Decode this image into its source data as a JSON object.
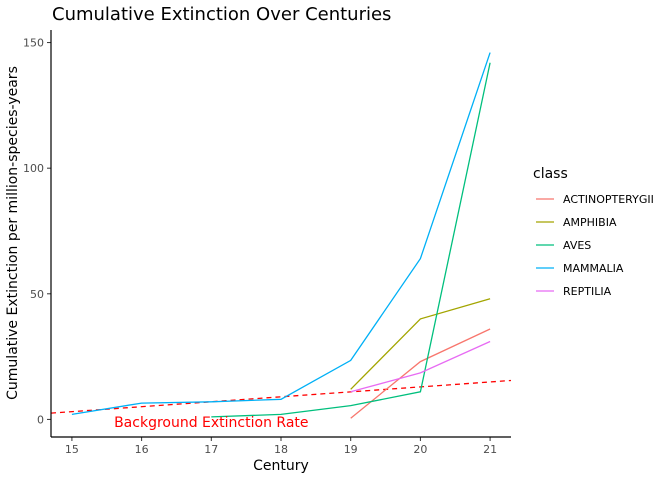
{
  "chart_data": {
    "type": "line",
    "title": "Cumulative Extinction Over Centuries",
    "xlabel": "Century",
    "ylabel": "Cumulative Extinction per million-species-years",
    "x_ticks": [
      15,
      16,
      17,
      18,
      19,
      20,
      21
    ],
    "y_ticks": [
      0,
      50,
      100,
      150
    ],
    "xlim": [
      14.7,
      21.3
    ],
    "ylim": [
      -7,
      155
    ],
    "grid": false,
    "legend": {
      "title": "class",
      "position": "right"
    },
    "series": [
      {
        "name": "ACTINOPTERYGII",
        "color": "#F8766D",
        "points": [
          [
            19,
            0.5
          ],
          [
            20,
            23
          ],
          [
            21,
            36
          ]
        ]
      },
      {
        "name": "AMPHIBIA",
        "color": "#A3A500",
        "points": [
          [
            19,
            12
          ],
          [
            20,
            40
          ],
          [
            21,
            48
          ]
        ]
      },
      {
        "name": "AVES",
        "color": "#00BF7D",
        "points": [
          [
            17,
            1
          ],
          [
            18,
            2
          ],
          [
            19,
            5.5
          ],
          [
            20,
            11
          ],
          [
            21,
            142
          ]
        ]
      },
      {
        "name": "MAMMALIA",
        "color": "#00B0F6",
        "points": [
          [
            15,
            2
          ],
          [
            16,
            6.5
          ],
          [
            17,
            7
          ],
          [
            18,
            8
          ],
          [
            19,
            23.5
          ],
          [
            20,
            64
          ],
          [
            21,
            146
          ]
        ]
      },
      {
        "name": "REPTILIA",
        "color": "#E76BF3",
        "points": [
          [
            19,
            11
          ],
          [
            20,
            18.5
          ],
          [
            21,
            31
          ]
        ]
      }
    ],
    "background_rate": {
      "label": "Background Extinction Rate",
      "color": "#ff0000",
      "style": "dashed",
      "points": [
        [
          14.7,
          2.5
        ],
        [
          21.3,
          15.5
        ]
      ],
      "label_at": [
        17.0,
        -1
      ]
    }
  }
}
